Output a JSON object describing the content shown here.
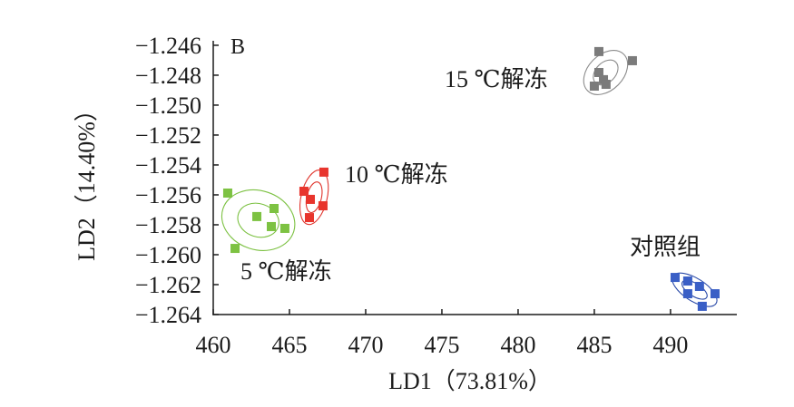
{
  "panel_label": "B",
  "chart_data": {
    "type": "scatter",
    "xlabel": "LD1（73.81%）",
    "ylabel": "LD2（14.40%）",
    "xlim": [
      460,
      494.35
    ],
    "ylim": [
      -1.264,
      -1.2457
    ],
    "x_ticks": [
      460,
      465,
      470,
      475,
      480,
      485,
      490
    ],
    "x_tick_labels": [
      "460",
      "465",
      "470",
      "475",
      "480",
      "485",
      "490"
    ],
    "y_ticks": [
      -1.246,
      -1.248,
      -1.25,
      -1.252,
      -1.254,
      -1.256,
      -1.258,
      -1.26,
      -1.262,
      -1.264
    ],
    "y_tick_labels": [
      "−1.246",
      "−1.248",
      "−1.250",
      "−1.252",
      "−1.254",
      "−1.256",
      "−1.258",
      "−1.260",
      "−1.262",
      "−1.264"
    ],
    "grid": false,
    "series": [
      {
        "name": "对照组",
        "color": "#3a5fc6",
        "ellipse_color": "#2a4aa8",
        "points": [
          [
            490.3,
            -1.26152
          ],
          [
            491.13,
            -1.26176
          ],
          [
            491.9,
            -1.26212
          ],
          [
            491.13,
            -1.26261
          ],
          [
            492.92,
            -1.26261
          ],
          [
            492.08,
            -1.26345
          ]
        ]
      },
      {
        "name": "5 ℃解冻",
        "color": "#7dc242",
        "ellipse_color": "#7cc142",
        "points": [
          [
            460.95,
            -1.25588
          ],
          [
            463.99,
            -1.25691
          ],
          [
            462.86,
            -1.25745
          ],
          [
            463.81,
            -1.25812
          ],
          [
            464.7,
            -1.25824
          ],
          [
            461.43,
            -1.25958
          ]
        ]
      },
      {
        "name": "10 ℃解冻",
        "color": "#e8352d",
        "ellipse_color": "#e0342c",
        "points": [
          [
            467.26,
            -1.25448
          ],
          [
            465.95,
            -1.25576
          ],
          [
            466.37,
            -1.2563
          ],
          [
            467.2,
            -1.25673
          ],
          [
            466.31,
            -1.25752
          ]
        ]
      },
      {
        "name": "15 ℃解冻",
        "color": "#7b7b7b",
        "ellipse_color": "#8c8c8c",
        "points": [
          [
            485.3,
            -1.24642
          ],
          [
            487.5,
            -1.24703
          ],
          [
            485.3,
            -1.24782
          ],
          [
            485.6,
            -1.2483
          ],
          [
            485.0,
            -1.24873
          ],
          [
            485.77,
            -1.24861
          ]
        ]
      }
    ]
  }
}
